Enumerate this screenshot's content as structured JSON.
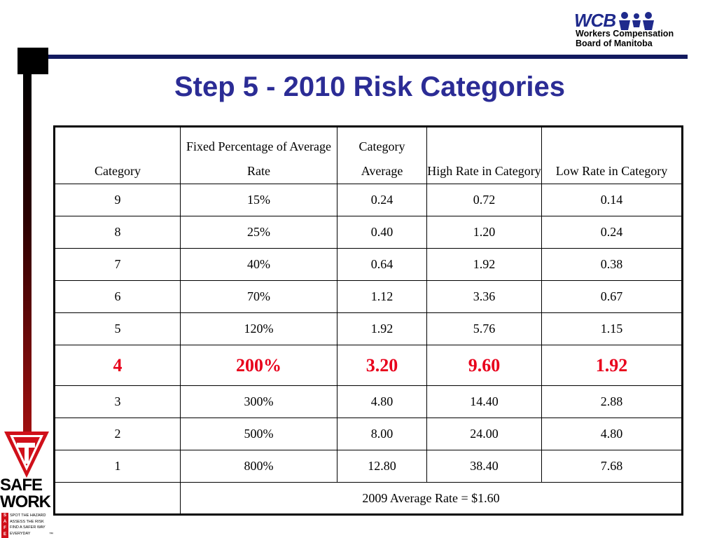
{
  "slide": {
    "title": "Step 5 - 2010 Risk Categories"
  },
  "logo": {
    "abbr": "WCB",
    "line1": "Workers Compensation",
    "line2": "Board of Manitoba"
  },
  "table": {
    "headers": [
      "Category",
      "Fixed Percentage of Average Rate",
      "Category Average",
      "High Rate in Category",
      "Low Rate in Category"
    ],
    "rows": [
      [
        "9",
        "15%",
        "0.24",
        "0.72",
        "0.14"
      ],
      [
        "8",
        "25%",
        "0.40",
        "1.20",
        "0.24"
      ],
      [
        "7",
        "40%",
        "0.64",
        "1.92",
        "0.38"
      ],
      [
        "6",
        "70%",
        "1.12",
        "3.36",
        "0.67"
      ],
      [
        "5",
        "120%",
        "1.92",
        "5.76",
        "1.15"
      ],
      [
        "4",
        "200%",
        "3.20",
        "9.60",
        "1.92"
      ],
      [
        "3",
        "300%",
        "4.80",
        "14.40",
        "2.88"
      ],
      [
        "2",
        "500%",
        "8.00",
        "24.00",
        "4.80"
      ],
      [
        "1",
        "800%",
        "12.80",
        "38.40",
        "7.68"
      ]
    ],
    "highlight_color": "#e8001b",
    "footer": "2009 Average Rate = $1.60"
  },
  "safework": {
    "line1": "SAFE",
    "line2": "WORK",
    "letters": [
      "S",
      "A",
      "F",
      "E"
    ],
    "slogan": [
      "SPOT THE HAZARD",
      "ASSESS THE RISK",
      "FIND A SAFER WAY",
      "EVERYDAY"
    ],
    "tm": "™"
  },
  "colors": {
    "title": "#2b2c95",
    "rule": "#121a5f",
    "logo_blue": "#1f2a8c",
    "safework_red": "#d0101a"
  }
}
